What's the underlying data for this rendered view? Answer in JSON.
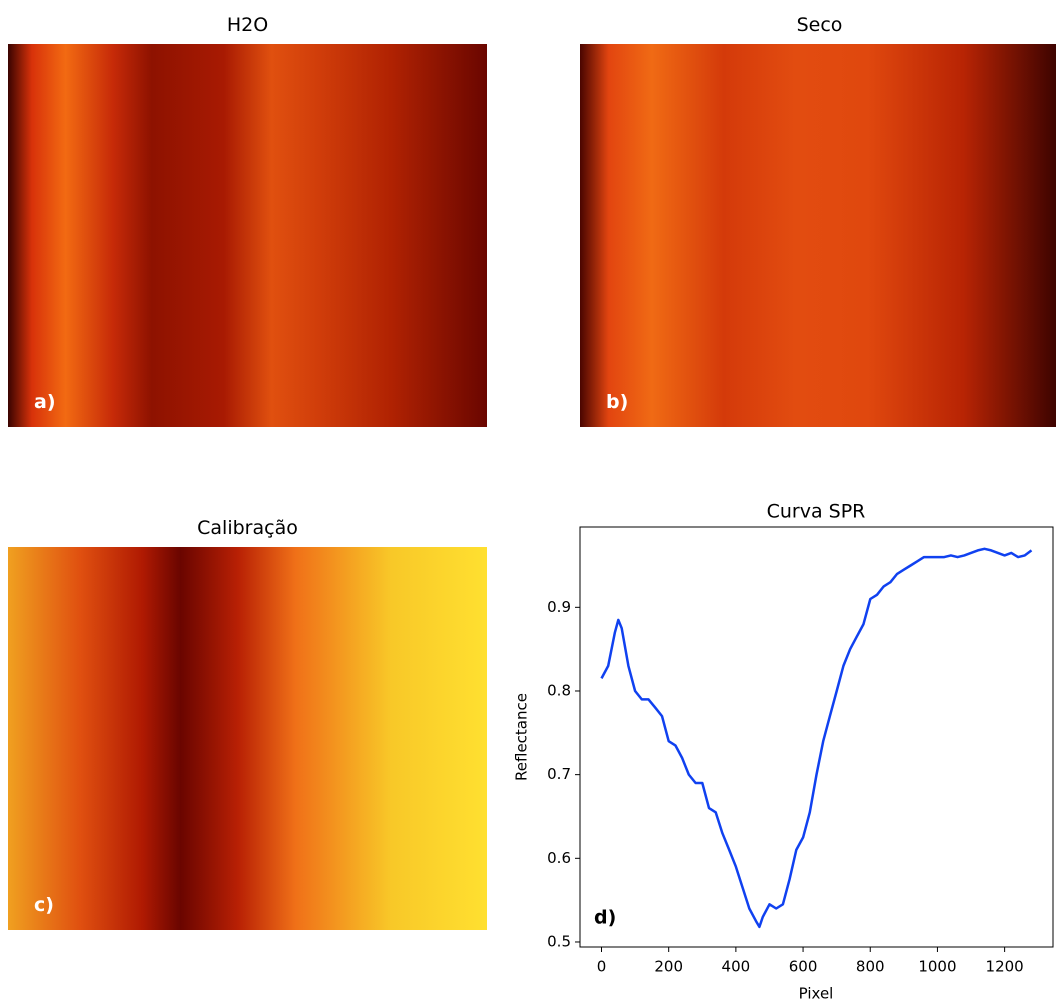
{
  "images": [
    {
      "title": "H2O",
      "label": "a)"
    },
    {
      "title": "Seco",
      "label": "b)"
    },
    {
      "title": "Calibração",
      "label": "c)"
    }
  ],
  "chart_data": {
    "type": "line",
    "title": "Curva SPR",
    "panel_label": "d)",
    "x_label": "Pixel",
    "y_label": "Reflectance",
    "color": "#1041f0",
    "x": [
      0,
      20,
      40,
      50,
      60,
      80,
      100,
      120,
      140,
      160,
      180,
      200,
      220,
      240,
      260,
      280,
      300,
      320,
      340,
      360,
      380,
      400,
      420,
      440,
      460,
      470,
      480,
      500,
      520,
      540,
      560,
      580,
      600,
      620,
      640,
      660,
      680,
      700,
      720,
      740,
      760,
      780,
      800,
      820,
      840,
      860,
      880,
      900,
      920,
      940,
      960,
      980,
      1000,
      1020,
      1040,
      1060,
      1080,
      1100,
      1120,
      1140,
      1160,
      1180,
      1200,
      1220,
      1240,
      1260,
      1280
    ],
    "values": [
      0.815,
      0.83,
      0.87,
      0.885,
      0.875,
      0.83,
      0.8,
      0.79,
      0.79,
      0.78,
      0.77,
      0.74,
      0.735,
      0.72,
      0.7,
      0.69,
      0.69,
      0.66,
      0.655,
      0.63,
      0.61,
      0.59,
      0.565,
      0.54,
      0.525,
      0.518,
      0.53,
      0.545,
      0.54,
      0.545,
      0.575,
      0.61,
      0.625,
      0.655,
      0.7,
      0.74,
      0.77,
      0.8,
      0.83,
      0.85,
      0.865,
      0.88,
      0.91,
      0.915,
      0.925,
      0.93,
      0.94,
      0.945,
      0.95,
      0.955,
      0.96,
      0.96,
      0.96,
      0.96,
      0.962,
      0.96,
      0.962,
      0.965,
      0.968,
      0.97,
      0.968,
      0.965,
      0.962,
      0.965,
      0.96,
      0.962,
      0.968
    ],
    "xlim": [
      -64,
      1344
    ],
    "ylim": [
      0.494,
      0.996
    ],
    "xticks": [
      0,
      200,
      400,
      600,
      800,
      1000,
      1200
    ],
    "yticks": [
      0.5,
      0.6,
      0.7,
      0.8,
      0.9
    ]
  }
}
